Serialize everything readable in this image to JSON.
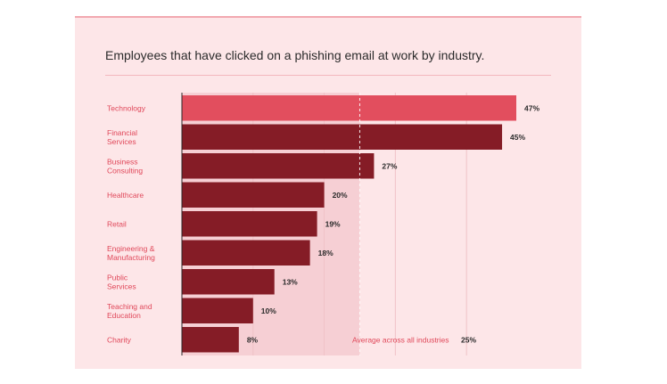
{
  "chart_data": {
    "type": "bar",
    "orientation": "horizontal",
    "title": "Employees that have clicked on a phishing email at work by industry.",
    "categories": [
      [
        "Technology"
      ],
      [
        "Financial",
        "Services"
      ],
      [
        "Business",
        "Consulting"
      ],
      [
        "Healthcare"
      ],
      [
        "Retail"
      ],
      [
        "Engineering &",
        "Manufacturing"
      ],
      [
        "Public",
        "Services"
      ],
      [
        "Teaching and",
        "Education"
      ],
      [
        "Charity"
      ]
    ],
    "values": [
      47,
      45,
      27,
      20,
      19,
      18,
      13,
      10,
      8
    ],
    "value_labels": [
      "47%",
      "45%",
      "27%",
      "20%",
      "19%",
      "18%",
      "13%",
      "10%",
      "8%"
    ],
    "highlight_index": 0,
    "average": {
      "value": 25,
      "label": "Average across all industries",
      "value_label": "25%"
    },
    "xlim": [
      0,
      47
    ],
    "grid": true,
    "colors": {
      "bar": "#851c26",
      "highlight": "#e24e5e",
      "category_text": "#e0485a",
      "average_band": "#f6cfd4",
      "background": "#fde6e8"
    }
  }
}
